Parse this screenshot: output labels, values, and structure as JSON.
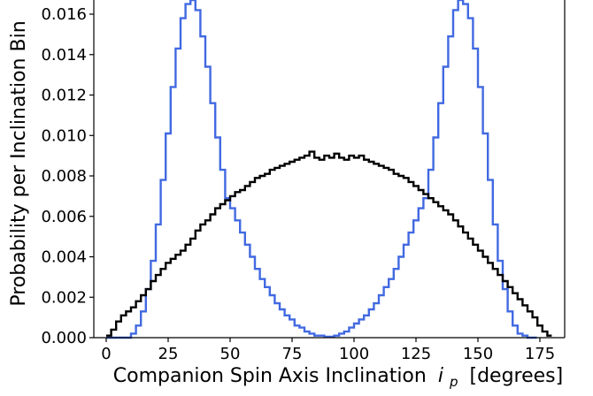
{
  "chart_data": {
    "type": "line",
    "step": true,
    "xlabel": "Companion Spin Axis Inclination",
    "xlabel_symbol": "i",
    "xlabel_subscript": "p",
    "xlabel_unit": "[degrees]",
    "ylabel": "Probability per Inclination Bin",
    "xlim": [
      -5,
      185
    ],
    "ylim": [
      0,
      0.0167
    ],
    "xticks": [
      0,
      25,
      50,
      75,
      100,
      125,
      150,
      175
    ],
    "xtick_labels": [
      "0",
      "25",
      "50",
      "75",
      "100",
      "125",
      "150",
      "175"
    ],
    "yticks": [
      0,
      0.002,
      0.004,
      0.006,
      0.008,
      0.01,
      0.012,
      0.014,
      0.016
    ],
    "ytick_labels": [
      "0.000",
      "0.002",
      "0.004",
      "0.006",
      "0.008",
      "0.010",
      "0.012",
      "0.014",
      "0.016"
    ],
    "grid": false,
    "legend": false,
    "bin_width": 1.8,
    "series": [
      {
        "color": "#4169E1",
        "x": [
          0,
          9,
          10,
          12,
          14,
          16,
          18,
          20,
          22,
          24,
          26,
          28,
          30,
          32,
          34,
          36,
          38,
          40,
          42,
          44,
          46,
          48,
          50,
          52,
          54,
          56,
          58,
          60,
          62,
          64,
          66,
          68,
          70,
          72,
          74,
          76,
          78,
          80,
          82,
          84,
          86,
          88,
          90,
          92,
          94,
          96,
          98,
          100,
          102,
          104,
          106,
          108,
          110,
          112,
          114,
          116,
          118,
          120,
          122,
          124,
          126,
          128,
          130,
          132,
          134,
          136,
          138,
          140,
          142,
          144,
          146,
          148,
          150,
          152,
          154,
          156,
          158,
          160,
          162,
          164,
          166,
          168,
          170,
          172
        ],
        "values": [
          0,
          0,
          0.0002,
          0.0006,
          0.0013,
          0.0024,
          0.0038,
          0.0056,
          0.0078,
          0.0101,
          0.0124,
          0.0143,
          0.0158,
          0.0165,
          0.0167,
          0.0162,
          0.0149,
          0.0134,
          0.0116,
          0.0099,
          0.0083,
          0.0069,
          0.0064,
          0.0058,
          0.0052,
          0.0046,
          0.004,
          0.0034,
          0.0029,
          0.0025,
          0.0021,
          0.0017,
          0.0014,
          0.0011,
          0.0009,
          0.0006,
          0.0005,
          0.0003,
          0.0002,
          0.0001,
          0.0001,
          5e-05,
          5e-05,
          0.0001,
          0.0002,
          0.0003,
          0.0005,
          0.0007,
          0.0009,
          0.0011,
          0.0014,
          0.0017,
          0.0021,
          0.0025,
          0.0029,
          0.0034,
          0.004,
          0.0046,
          0.0052,
          0.0058,
          0.0064,
          0.0069,
          0.0083,
          0.0099,
          0.0116,
          0.0134,
          0.0149,
          0.0162,
          0.0167,
          0.0165,
          0.0158,
          0.0143,
          0.0124,
          0.0101,
          0.0078,
          0.0056,
          0.0038,
          0.0024,
          0.0013,
          0.0006,
          0.0002,
          0.0001,
          0,
          0
        ]
      },
      {
        "color": "#000000",
        "x": [
          0,
          2,
          4,
          6,
          8,
          10,
          12,
          14,
          16,
          18,
          20,
          22,
          24,
          26,
          28,
          30,
          32,
          34,
          36,
          38,
          40,
          42,
          44,
          46,
          48,
          50,
          52,
          54,
          56,
          58,
          60,
          62,
          64,
          66,
          68,
          70,
          72,
          74,
          76,
          78,
          80,
          82,
          84,
          86,
          88,
          90,
          92,
          94,
          96,
          98,
          100,
          102,
          104,
          106,
          108,
          110,
          112,
          114,
          116,
          118,
          120,
          122,
          124,
          126,
          128,
          130,
          132,
          134,
          136,
          138,
          140,
          142,
          144,
          146,
          148,
          150,
          152,
          154,
          156,
          158,
          160,
          162,
          164,
          166,
          168,
          170,
          172,
          174,
          176,
          178
        ],
        "values": [
          0.0001,
          0.0004,
          0.0008,
          0.0011,
          0.0013,
          0.0015,
          0.0018,
          0.0021,
          0.0024,
          0.0028,
          0.0031,
          0.0034,
          0.0037,
          0.0039,
          0.0041,
          0.0043,
          0.0046,
          0.0049,
          0.0053,
          0.0056,
          0.0058,
          0.0061,
          0.0064,
          0.0066,
          0.0068,
          0.007,
          0.0072,
          0.0073,
          0.0075,
          0.0077,
          0.0079,
          0.008,
          0.0081,
          0.0083,
          0.0084,
          0.0085,
          0.0086,
          0.0087,
          0.0088,
          0.0089,
          0.009,
          0.0092,
          0.0089,
          0.0088,
          0.009,
          0.0089,
          0.0091,
          0.0089,
          0.0088,
          0.009,
          0.0089,
          0.009,
          0.0088,
          0.0087,
          0.0086,
          0.0085,
          0.0084,
          0.0083,
          0.0081,
          0.008,
          0.0079,
          0.0077,
          0.0075,
          0.0073,
          0.0071,
          0.0069,
          0.0067,
          0.0065,
          0.0063,
          0.0061,
          0.0058,
          0.0055,
          0.0052,
          0.0049,
          0.0046,
          0.0043,
          0.004,
          0.0037,
          0.0034,
          0.0031,
          0.0028,
          0.0025,
          0.0022,
          0.0019,
          0.0016,
          0.0013,
          0.001,
          0.0006,
          0.0003,
          0.0001
        ]
      }
    ]
  }
}
